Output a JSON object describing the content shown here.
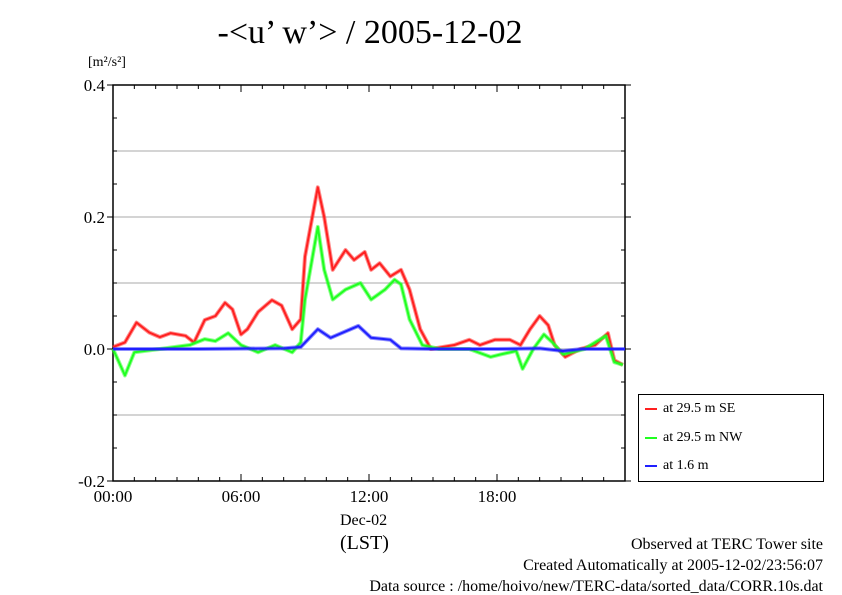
{
  "chart_data": {
    "type": "line",
    "title": "-<u’ w’> / 2005-12-02",
    "ylabel": "[m²/s²]",
    "xlabel": "(LST)",
    "date_label": "Dec-02",
    "xlim": [
      0,
      24
    ],
    "ylim": [
      -0.2,
      0.4
    ],
    "xticks": [
      {
        "v": 0,
        "label": "00:00"
      },
      {
        "v": 6,
        "label": "06:00"
      },
      {
        "v": 12,
        "label": "12:00"
      },
      {
        "v": 18,
        "label": "18:00"
      }
    ],
    "yticks": [
      {
        "v": 0.4,
        "label": "0.4"
      },
      {
        "v": 0.2,
        "label": "0.2"
      },
      {
        "v": 0.0,
        "label": "0.0"
      },
      {
        "v": -0.2,
        "label": "-0.2"
      }
    ],
    "grid": true,
    "legend_position": "outside-right-bottom",
    "series": [
      {
        "name": "at 29.5 m SE",
        "color": "#ff2020",
        "x": [
          0,
          0.56,
          1.1,
          1.7,
          2.2,
          2.7,
          3.4,
          3.8,
          4.3,
          4.8,
          5.25,
          5.6,
          6,
          6.3,
          6.8,
          7.45,
          7.9,
          8.4,
          8.8,
          9,
          9.6,
          9.9,
          10.3,
          10.9,
          11.3,
          11.8,
          12.1,
          12.5,
          13,
          13.5,
          13.9,
          14.4,
          14.9,
          16,
          16.7,
          17.2,
          17.9,
          18.6,
          19.1,
          19.55,
          20,
          20.4,
          20.7,
          21.2,
          21.9,
          22.6,
          23.2,
          23.5,
          23.9
        ],
        "y": [
          0.003,
          0.01,
          0.04,
          0.025,
          0.018,
          0.024,
          0.02,
          0.01,
          0.044,
          0.05,
          0.07,
          0.06,
          0.022,
          0.03,
          0.056,
          0.074,
          0.066,
          0.03,
          0.045,
          0.14,
          0.245,
          0.2,
          0.12,
          0.15,
          0.135,
          0.147,
          0.12,
          0.13,
          0.11,
          0.12,
          0.09,
          0.03,
          0.0,
          0.006,
          0.014,
          0.006,
          0.014,
          0.014,
          0.006,
          0.03,
          0.05,
          0.036,
          0.006,
          -0.012,
          0.0,
          0.006,
          0.024,
          -0.017,
          -0.024
        ]
      },
      {
        "name": "at 29.5 m NW",
        "color": "#20ff20",
        "x": [
          0,
          0.56,
          1,
          2.2,
          3.6,
          4.3,
          4.8,
          5.4,
          6,
          6.8,
          7.6,
          8.4,
          8.8,
          9,
          9.6,
          9.9,
          10.3,
          10.9,
          11.6,
          12.1,
          12.75,
          13.2,
          13.5,
          13.9,
          14.5,
          15.3,
          16.7,
          17.7,
          18.2,
          18.9,
          19.2,
          19.7,
          20.2,
          20.6,
          21.1,
          22.1,
          23.1,
          23.5,
          23.9
        ],
        "y": [
          0,
          -0.04,
          -0.005,
          0,
          0.006,
          0.015,
          0.012,
          0.024,
          0.006,
          -0.005,
          0.006,
          -0.005,
          0.01,
          0.075,
          0.185,
          0.12,
          0.075,
          0.09,
          0.1,
          0.075,
          0.09,
          0.105,
          0.098,
          0.045,
          0.006,
          0,
          0,
          -0.012,
          -0.008,
          -0.003,
          -0.03,
          0,
          0.022,
          0.01,
          -0.008,
          0,
          0.02,
          -0.02,
          -0.024
        ]
      },
      {
        "name": "at 1.6 m",
        "color": "#2020ff",
        "x": [
          0,
          4,
          8,
          8.8,
          9.6,
          10.2,
          11.5,
          12.1,
          13,
          13.5,
          15,
          18,
          20,
          21.1,
          22,
          24
        ],
        "y": [
          0,
          0,
          0.001,
          0.003,
          0.03,
          0.017,
          0.035,
          0.017,
          0.014,
          0.001,
          0,
          0,
          0.001,
          -0.003,
          0,
          0
        ]
      }
    ]
  },
  "footer": {
    "line1": "Observed at TERC Tower site",
    "line2": "Created Automatically at 2005-12-02/23:56:07",
    "line3": "Data source : /home/hoivo/new/TERC-data/sorted_data/CORR.10s.dat"
  }
}
